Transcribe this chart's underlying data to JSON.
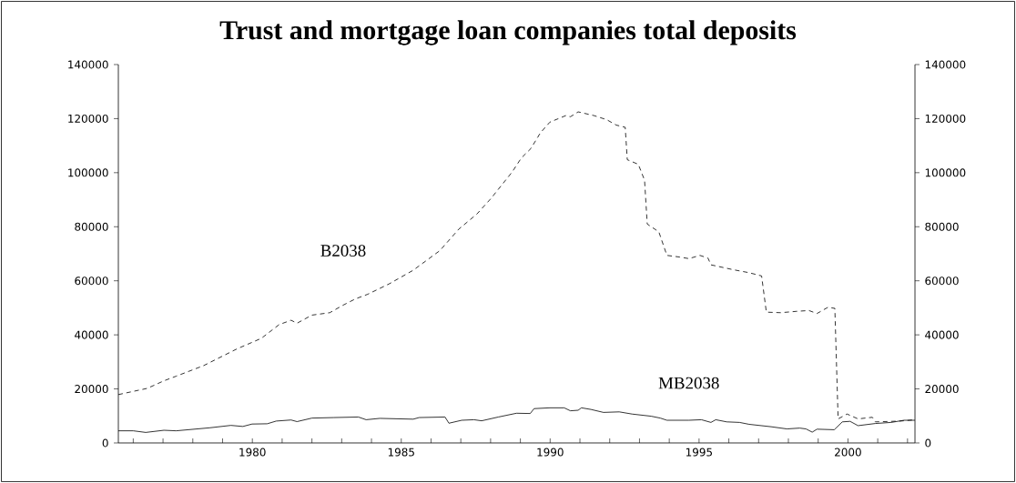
{
  "chart_data": {
    "type": "line",
    "title": "Trust and mortgage loan companies total deposits",
    "xlim": [
      1975.5,
      2002.25
    ],
    "xticks": [
      {
        "value": 1976,
        "label": null
      },
      {
        "value": 1977,
        "label": null
      },
      {
        "value": 1978,
        "label": null
      },
      {
        "value": 1979,
        "label": null
      },
      1980,
      {
        "value": 1981,
        "label": null
      },
      {
        "value": 1982,
        "label": null
      },
      {
        "value": 1983,
        "label": null
      },
      {
        "value": 1984,
        "label": null
      },
      1985,
      {
        "value": 1986,
        "label": null
      },
      {
        "value": 1987,
        "label": null
      },
      {
        "value": 1988,
        "label": null
      },
      {
        "value": 1989,
        "label": null
      },
      1990,
      {
        "value": 1991,
        "label": null
      },
      {
        "value": 1992,
        "label": null
      },
      {
        "value": 1993,
        "label": null
      },
      {
        "value": 1994,
        "label": null
      },
      1995,
      {
        "value": 1996,
        "label": null
      },
      {
        "value": 1997,
        "label": null
      },
      {
        "value": 1998,
        "label": null
      },
      {
        "value": 1999,
        "label": null
      },
      2000,
      {
        "value": 2001,
        "label": null
      },
      {
        "value": 2002,
        "label": null
      }
    ],
    "ylim": [
      0,
      140000
    ],
    "yticks": [
      0,
      20000,
      40000,
      60000,
      80000,
      100000,
      120000,
      140000
    ],
    "y2lim": [
      0,
      140000
    ],
    "y2ticks": [
      0,
      20000,
      40000,
      60000,
      80000,
      100000,
      120000,
      140000
    ],
    "series": [
      {
        "name": "B2038",
        "color": "#000000",
        "line_style": "dashed",
        "x": [
          1975.5,
          1976.47,
          1977.03,
          1977.44,
          1978.36,
          1979.48,
          1980.3,
          1980.9,
          1981.3,
          1981.5,
          1982.0,
          1982.6,
          1983.05,
          1983.46,
          1983.87,
          1984.6,
          1985.4,
          1986.3,
          1986.93,
          1987.54,
          1988.0,
          1988.72,
          1989.03,
          1989.35,
          1989.67,
          1989.99,
          1990.52,
          1990.68,
          1990.94,
          1991.48,
          1991.9,
          1992.22,
          1992.52,
          1992.59,
          1992.96,
          1993.17,
          1993.26,
          1993.65,
          1993.92,
          1994.34,
          1994.66,
          1995.03,
          1995.3,
          1995.4,
          1996.15,
          1996.68,
          1997.1,
          1997.26,
          1997.74,
          1998.27,
          1998.69,
          1998.96,
          1999.33,
          1999.56,
          1999.67,
          1999.97,
          2000.34,
          2000.82,
          2000.92,
          2001.77,
          2002.25
        ],
        "values": [
          17900,
          20200,
          23000,
          24700,
          28600,
          34800,
          38700,
          43800,
          45400,
          44300,
          47300,
          48200,
          51000,
          53300,
          55000,
          58900,
          63900,
          71200,
          79100,
          84700,
          90300,
          100200,
          105400,
          108900,
          114700,
          118700,
          121100,
          120700,
          122500,
          121100,
          119600,
          117600,
          116800,
          104800,
          103100,
          97200,
          81000,
          78100,
          69400,
          68800,
          68200,
          69400,
          68400,
          65900,
          64100,
          63000,
          61800,
          48400,
          48200,
          48700,
          49000,
          47900,
          50200,
          49800,
          8900,
          10700,
          8900,
          9500,
          7800,
          8100,
          8600
        ]
      },
      {
        "name": "MB2038",
        "color": "#000000",
        "line_style": "solid",
        "x": [
          1975.5,
          1976.0,
          1976.42,
          1977.03,
          1977.44,
          1978.56,
          1979.28,
          1979.68,
          1979.99,
          1980.5,
          1980.8,
          1981.3,
          1981.5,
          1982.0,
          1982.74,
          1983.56,
          1983.82,
          1984.28,
          1985.4,
          1985.6,
          1986.47,
          1986.6,
          1987.03,
          1987.44,
          1987.7,
          1988.26,
          1988.87,
          1989.33,
          1989.46,
          1989.99,
          1990.47,
          1990.68,
          1990.94,
          1991.05,
          1991.37,
          1991.79,
          1992.32,
          1992.75,
          1993.39,
          1993.7,
          1993.92,
          1994.66,
          1995.08,
          1995.4,
          1995.56,
          1995.93,
          1996.36,
          1996.68,
          1997.42,
          1997.95,
          1998.38,
          1998.59,
          1998.8,
          1998.96,
          1999.54,
          1999.81,
          2000.07,
          2000.34,
          2000.92,
          2001.45,
          2001.88,
          2002.25
        ],
        "values": [
          4500,
          4500,
          3900,
          4700,
          4500,
          5600,
          6500,
          6100,
          7000,
          7100,
          8100,
          8500,
          7900,
          9200,
          9400,
          9600,
          8600,
          9100,
          8800,
          9400,
          9600,
          7300,
          8400,
          8600,
          8200,
          9600,
          11000,
          10900,
          12700,
          13000,
          13000,
          11900,
          12100,
          13000,
          12400,
          11300,
          11500,
          10700,
          9900,
          9200,
          8400,
          8400,
          8600,
          7600,
          8600,
          7800,
          7600,
          6900,
          6000,
          5200,
          5500,
          5200,
          4000,
          5100,
          4900,
          7800,
          8000,
          6400,
          7200,
          7600,
          8400,
          8400
        ]
      }
    ]
  }
}
